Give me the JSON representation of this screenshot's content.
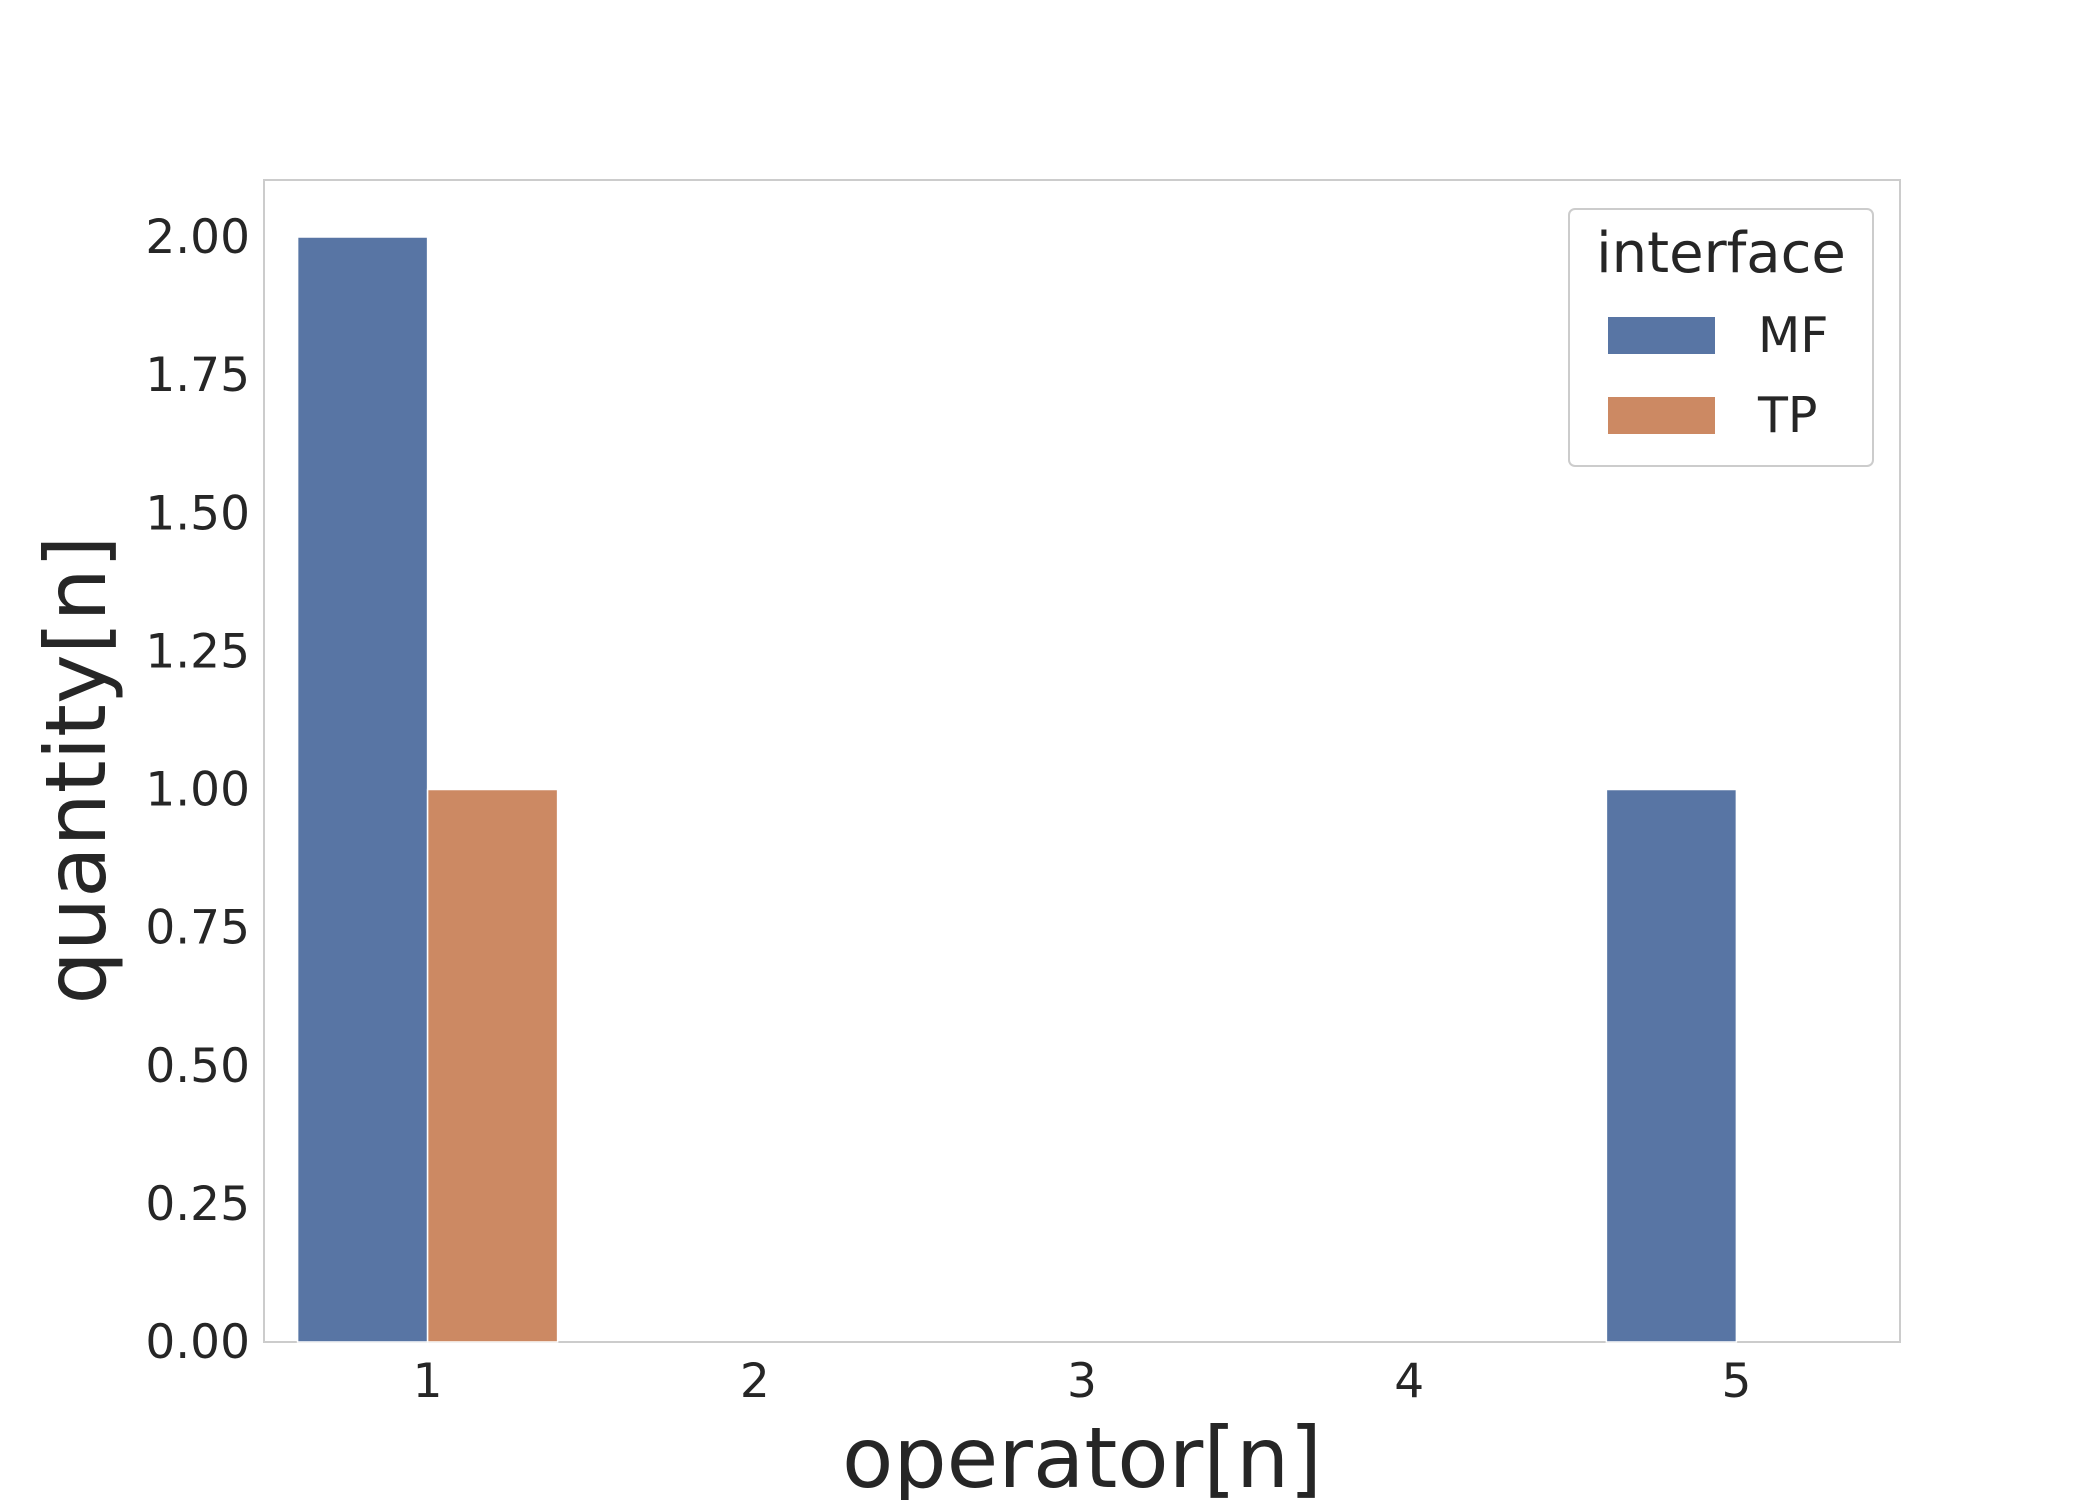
{
  "chart_data": {
    "type": "bar",
    "categories": [
      "1",
      "2",
      "3",
      "4",
      "5"
    ],
    "series": [
      {
        "name": "MF",
        "color": "#5875a4",
        "values": [
          2,
          0,
          0,
          0,
          1
        ]
      },
      {
        "name": "TP",
        "color": "#cc8963",
        "values": [
          1,
          0,
          0,
          0,
          0
        ]
      }
    ],
    "xlabel": "operator[n]",
    "ylabel": "quantity[n]",
    "ylim": [
      0,
      2.1
    ],
    "yticks": [
      "0.00",
      "0.25",
      "0.50",
      "0.75",
      "1.00",
      "1.25",
      "1.50",
      "1.75",
      "2.00"
    ],
    "legend": {
      "title": "interface",
      "position": "top-right"
    },
    "grid": false
  }
}
